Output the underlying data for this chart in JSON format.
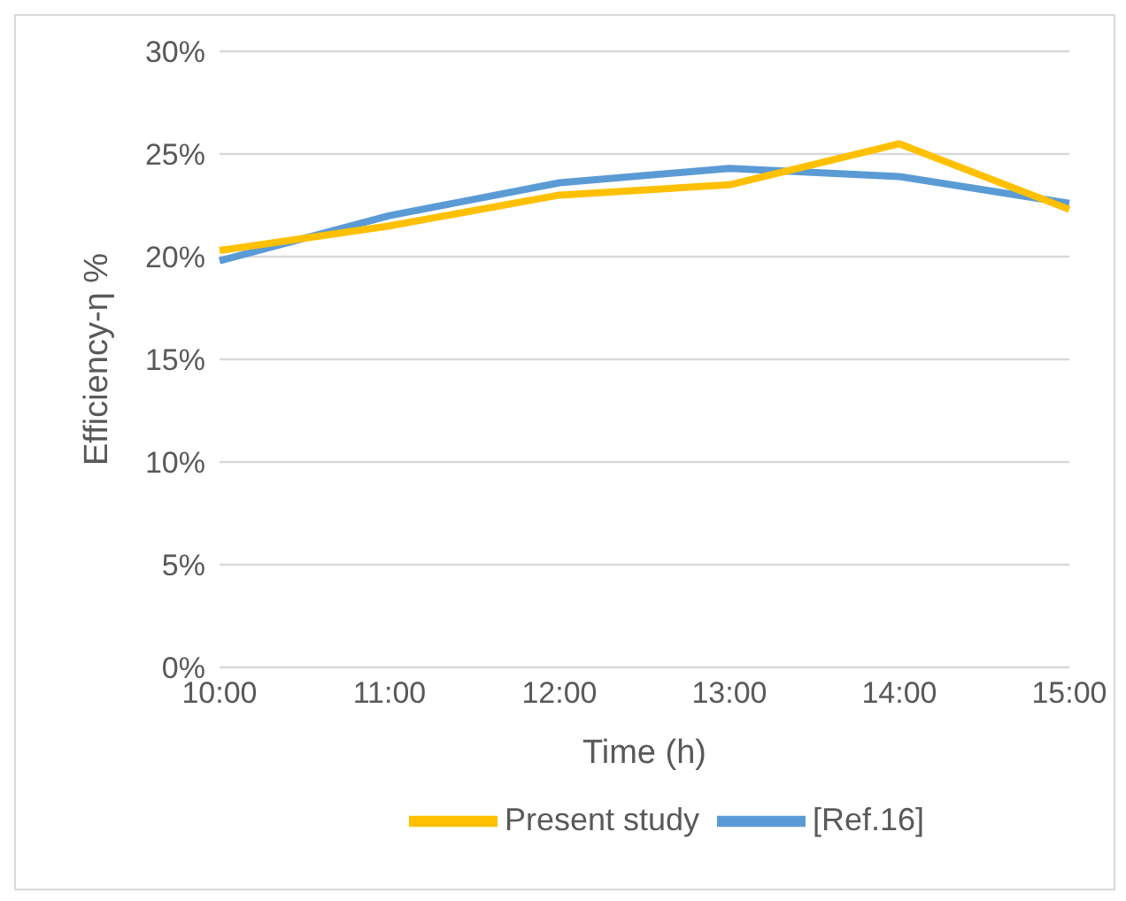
{
  "chart_data": {
    "type": "line",
    "xlabel": "Time (h)",
    "ylabel": "Efficiency-η %",
    "categories": [
      "10:00",
      "11:00",
      "12:00",
      "13:00",
      "14:00",
      "15:00"
    ],
    "series": [
      {
        "name": "[Ref.16]",
        "color": "#5b9bd5",
        "values": [
          19.8,
          22.0,
          23.6,
          24.3,
          23.9,
          22.6
        ]
      },
      {
        "name": "Present study",
        "color": "#ffc000",
        "values": [
          20.3,
          21.5,
          23.0,
          23.5,
          25.5,
          22.3
        ]
      }
    ],
    "ylim": [
      0,
      30
    ],
    "yticks": [
      {
        "value": 0,
        "label": "0%"
      },
      {
        "value": 5,
        "label": "5%"
      },
      {
        "value": 10,
        "label": "10%"
      },
      {
        "value": 15,
        "label": "15%"
      },
      {
        "value": 20,
        "label": "20%"
      },
      {
        "value": 25,
        "label": "25%"
      },
      {
        "value": 30,
        "label": "30%"
      }
    ],
    "grid": "y",
    "legend": "bottom",
    "marker": "none",
    "line_style": "solid"
  }
}
